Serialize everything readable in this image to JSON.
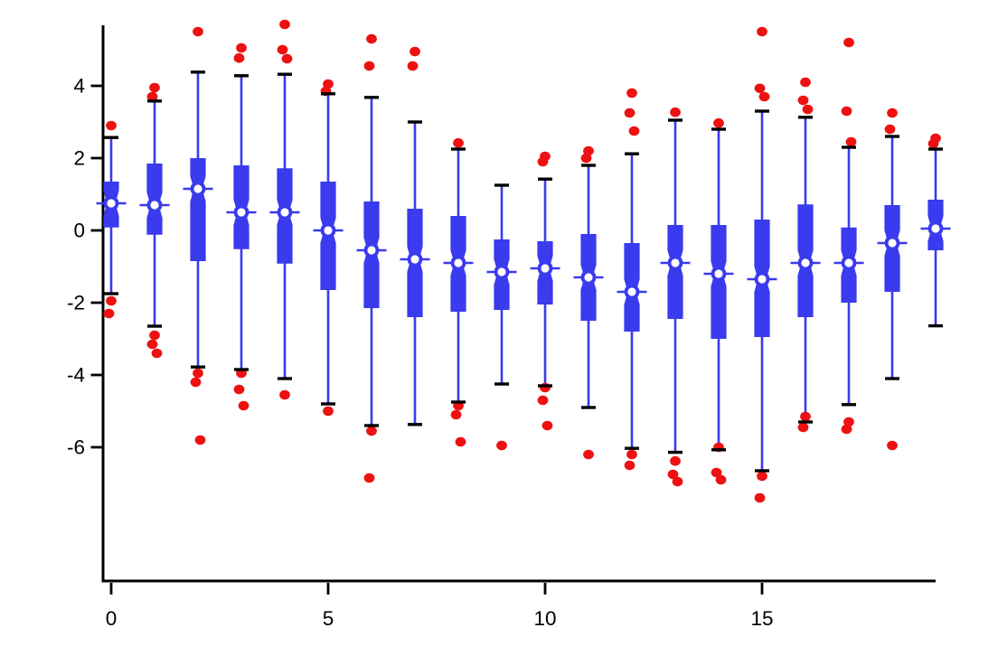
{
  "chart_data": {
    "type": "box",
    "title": "",
    "xlabel": "",
    "ylabel": "",
    "x_ticks": [
      0,
      5,
      10,
      15
    ],
    "y_ticks": [
      4,
      2,
      0,
      -2,
      -4,
      -6
    ],
    "xlim": [
      0,
      19
    ],
    "ylim": [
      -7.8,
      5.8
    ],
    "grid": false,
    "legend": "none",
    "colors": {
      "box": "#3a3aee",
      "whisker": "#3a3aee",
      "median_dash": "#3a3aee",
      "median_marker_fill": "#ffffff",
      "outlier": "#ee1111",
      "cap": "#000000",
      "axis": "#000000",
      "background": "#ffffff"
    },
    "columns": [
      {
        "x": 0,
        "whisker_low": -1.75,
        "q1": 0.08,
        "median": 0.75,
        "q3": 1.35,
        "whisker_high": 2.57,
        "outliers_high": [
          2.9
        ],
        "outliers_low": [
          -1.95,
          -2.3
        ]
      },
      {
        "x": 1,
        "whisker_low": -2.65,
        "q1": -0.12,
        "median": 0.7,
        "q3": 1.85,
        "whisker_high": 3.58,
        "outliers_high": [
          3.95,
          3.7
        ],
        "outliers_low": [
          -2.9,
          -3.15,
          -3.4
        ]
      },
      {
        "x": 2,
        "whisker_low": -3.78,
        "q1": -0.85,
        "median": 1.15,
        "q3": 2.0,
        "whisker_high": 4.38,
        "outliers_high": [
          5.5
        ],
        "outliers_low": [
          -3.95,
          -4.2,
          -5.8
        ]
      },
      {
        "x": 3,
        "whisker_low": -3.85,
        "q1": -0.52,
        "median": 0.5,
        "q3": 1.8,
        "whisker_high": 4.28,
        "outliers_high": [
          5.05,
          4.77
        ],
        "outliers_low": [
          -3.95,
          -4.4,
          -4.85
        ]
      },
      {
        "x": 4,
        "whisker_low": -4.1,
        "q1": -0.92,
        "median": 0.5,
        "q3": 1.72,
        "whisker_high": 4.32,
        "outliers_high": [
          5.7,
          5.0,
          4.75
        ],
        "outliers_low": [
          -4.55
        ]
      },
      {
        "x": 5,
        "whisker_low": -4.8,
        "q1": -1.65,
        "median": 0.0,
        "q3": 1.35,
        "whisker_high": 3.78,
        "outliers_high": [
          4.05,
          3.85
        ],
        "outliers_low": [
          -5.0
        ]
      },
      {
        "x": 6,
        "whisker_low": -5.4,
        "q1": -2.15,
        "median": -0.55,
        "q3": 0.8,
        "whisker_high": 3.68,
        "outliers_high": [
          5.3,
          4.55
        ],
        "outliers_low": [
          -5.55,
          -6.85
        ]
      },
      {
        "x": 7,
        "whisker_low": -5.37,
        "q1": -2.4,
        "median": -0.8,
        "q3": 0.6,
        "whisker_high": 3.0,
        "outliers_high": [
          4.95,
          4.55
        ],
        "outliers_low": []
      },
      {
        "x": 8,
        "whisker_low": -4.75,
        "q1": -2.25,
        "median": -0.9,
        "q3": 0.4,
        "whisker_high": 2.25,
        "outliers_high": [
          2.42
        ],
        "outliers_low": [
          -4.85,
          -5.1,
          -5.85
        ]
      },
      {
        "x": 9,
        "whisker_low": -4.25,
        "q1": -2.2,
        "median": -1.15,
        "q3": -0.25,
        "whisker_high": 1.25,
        "outliers_high": [],
        "outliers_low": [
          -5.95
        ]
      },
      {
        "x": 10,
        "whisker_low": -4.3,
        "q1": -2.05,
        "median": -1.05,
        "q3": -0.3,
        "whisker_high": 1.42,
        "outliers_high": [
          2.05,
          1.9
        ],
        "outliers_low": [
          -4.35,
          -4.7,
          -5.4
        ]
      },
      {
        "x": 11,
        "whisker_low": -4.9,
        "q1": -2.5,
        "median": -1.3,
        "q3": -0.1,
        "whisker_high": 1.8,
        "outliers_high": [
          2.2,
          2.0
        ],
        "outliers_low": [
          -6.2
        ]
      },
      {
        "x": 12,
        "whisker_low": -6.03,
        "q1": -2.8,
        "median": -1.7,
        "q3": -0.35,
        "whisker_high": 2.12,
        "outliers_high": [
          3.8,
          3.25,
          2.75
        ],
        "outliers_low": [
          -6.2,
          -6.5
        ]
      },
      {
        "x": 13,
        "whisker_low": -6.14,
        "q1": -2.45,
        "median": -0.9,
        "q3": 0.15,
        "whisker_high": 3.05,
        "outliers_high": [
          3.27
        ],
        "outliers_low": [
          -6.38,
          -6.75,
          -6.95
        ]
      },
      {
        "x": 14,
        "whisker_low": -6.07,
        "q1": -3.0,
        "median": -1.2,
        "q3": 0.15,
        "whisker_high": 2.8,
        "outliers_high": [
          2.97
        ],
        "outliers_low": [
          -6.0,
          -6.7,
          -6.9
        ]
      },
      {
        "x": 15,
        "whisker_low": -6.65,
        "q1": -2.95,
        "median": -1.35,
        "q3": 0.3,
        "whisker_high": 3.3,
        "outliers_high": [
          5.5,
          3.93,
          3.7
        ],
        "outliers_low": [
          -6.8,
          -7.4
        ]
      },
      {
        "x": 16,
        "whisker_low": -5.3,
        "q1": -2.4,
        "median": -0.9,
        "q3": 0.72,
        "whisker_high": 3.13,
        "outliers_high": [
          4.1,
          3.6,
          3.35
        ],
        "outliers_low": [
          -5.15,
          -5.45
        ]
      },
      {
        "x": 17,
        "whisker_low": -4.82,
        "q1": -2.0,
        "median": -0.9,
        "q3": 0.08,
        "whisker_high": 2.3,
        "outliers_high": [
          5.2,
          3.3,
          2.45
        ],
        "outliers_low": [
          -5.3,
          -5.5
        ]
      },
      {
        "x": 18,
        "whisker_low": -4.1,
        "q1": -1.7,
        "median": -0.35,
        "q3": 0.7,
        "whisker_high": 2.6,
        "outliers_high": [
          3.25,
          2.8
        ],
        "outliers_low": [
          -5.95
        ]
      },
      {
        "x": 19,
        "whisker_low": -2.64,
        "q1": -0.55,
        "median": 0.05,
        "q3": 0.85,
        "whisker_high": 2.25,
        "outliers_high": [
          2.55,
          2.4
        ],
        "outliers_low": []
      }
    ]
  }
}
